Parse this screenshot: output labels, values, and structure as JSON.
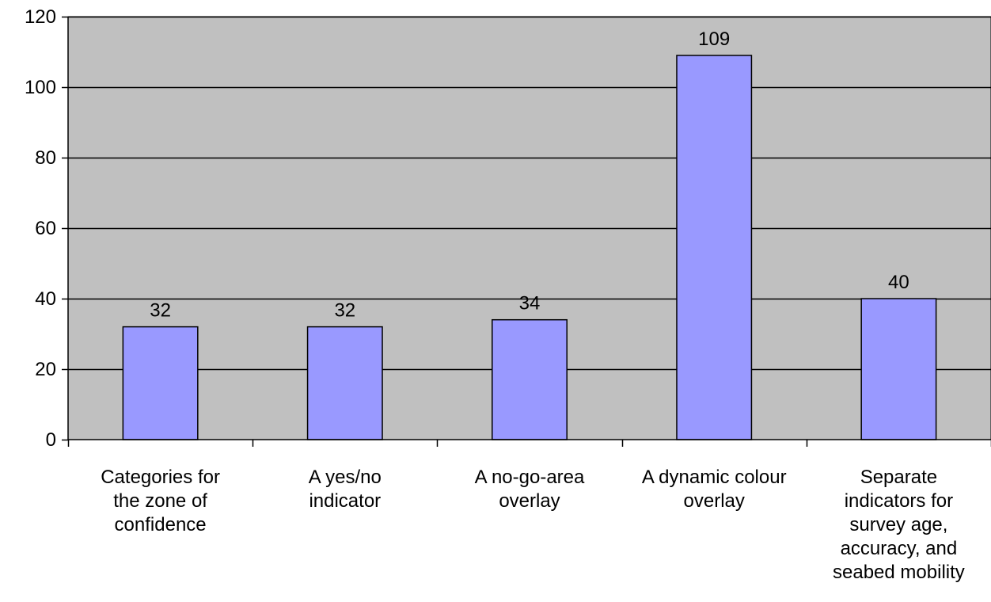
{
  "chart_data": {
    "type": "bar",
    "categories": [
      "Categories for the zone of confidence",
      "A yes/no indicator",
      "A no-go-area overlay",
      "A dynamic colour overlay",
      "Separate indicators for survey age, accuracy, and seabed mobility"
    ],
    "category_label_lines": [
      [
        "Categories for",
        "the zone of",
        "confidence"
      ],
      [
        "A yes/no",
        "indicator"
      ],
      [
        "A no-go-area",
        "overlay"
      ],
      [
        "A dynamic colour",
        "overlay"
      ],
      [
        "Separate",
        "indicators for",
        "survey age,",
        "accuracy, and",
        "seabed mobility"
      ]
    ],
    "values": [
      32,
      32,
      34,
      109,
      40
    ],
    "data_labels": [
      "32",
      "32",
      "34",
      "109",
      "40"
    ],
    "ylim": [
      0,
      120
    ],
    "yticks": [
      0,
      20,
      40,
      60,
      80,
      100,
      120
    ],
    "title": "",
    "xlabel": "",
    "ylabel": "",
    "grid": true,
    "legend": "none",
    "colors": {
      "plot_background": "#c0c0c0",
      "bar_fill": "#9999ff",
      "bar_stroke": "#000000",
      "gridline": "#000000"
    }
  }
}
